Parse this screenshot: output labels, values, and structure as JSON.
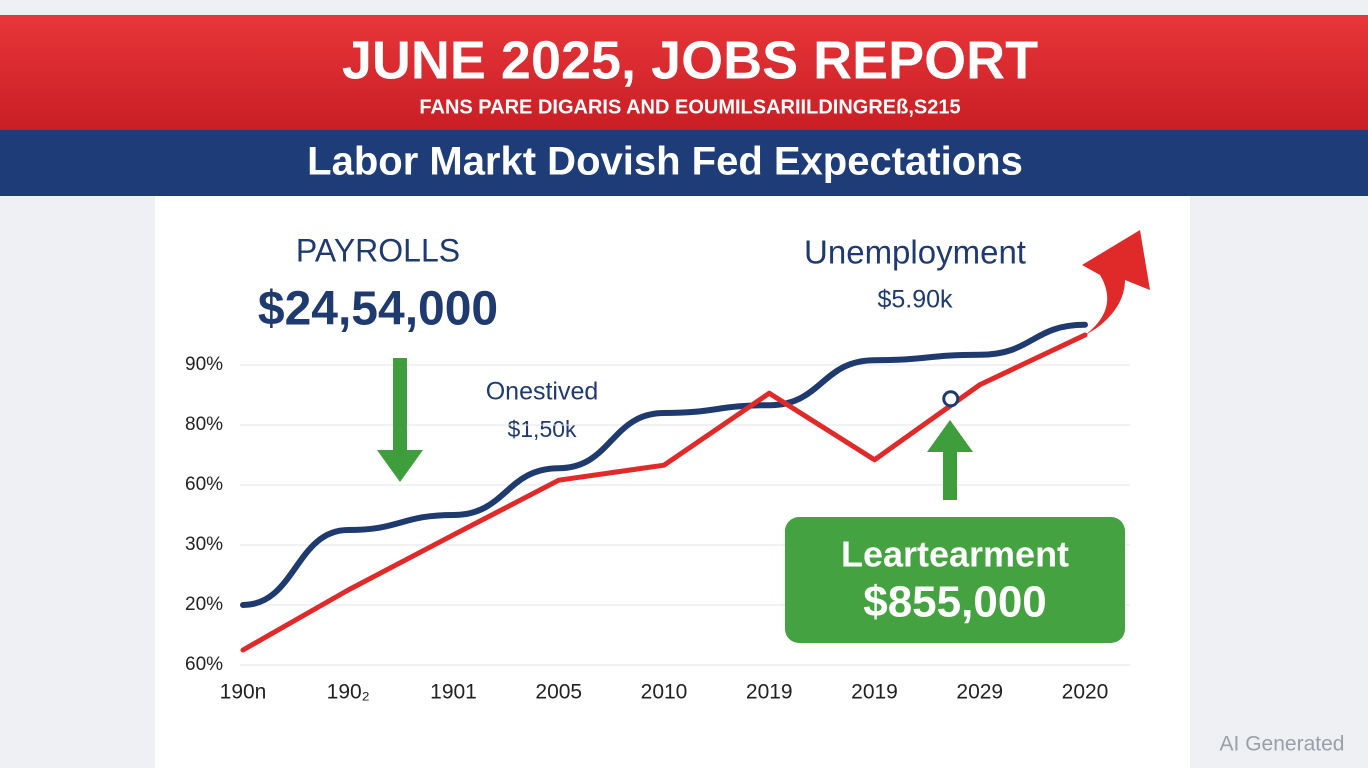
{
  "chart_data": {
    "type": "line",
    "title": "JUNE 2025, JOBS REPORT",
    "subtitle": "FANS PARE DIGARIS AND EOUMILSARIILDINGREß,S215",
    "heading": "Labor Markt Dovish Fed Expectations",
    "annotations": [
      {
        "label": "PAYROLLS",
        "value_label": "$24,54,000"
      },
      {
        "label": "Onestived",
        "value_label": "$1,50k"
      },
      {
        "label": "Unemployment",
        "value_label": "$5.90k"
      },
      {
        "label": "Leartearment",
        "value_label": "$855,000"
      }
    ],
    "categories": [
      "190n",
      "190₂",
      "1901",
      "2005",
      "2010",
      "2019",
      "2019",
      "2029",
      "2020"
    ],
    "series": [
      {
        "color": "#1f3a6e",
        "values": [
          1.0,
          2.25,
          2.5,
          3.28,
          4.2,
          4.33,
          5.08,
          5.17,
          5.67
        ]
      },
      {
        "color": "#e02a2a",
        "values": [
          0.25,
          1.25,
          2.17,
          3.08,
          3.33,
          4.53,
          3.42,
          4.67,
          5.5
        ]
      }
    ],
    "ylim": [
      0,
      5
    ],
    "yticks": [
      {
        "value": 0,
        "label": "60%"
      },
      {
        "value": 1,
        "label": "20%"
      },
      {
        "value": 2,
        "label": "30%"
      },
      {
        "value": 3,
        "label": "60%"
      },
      {
        "value": 4,
        "label": "80%"
      },
      {
        "value": 5,
        "label": "90%"
      }
    ],
    "grid": true,
    "watermark": "AI Generated"
  }
}
